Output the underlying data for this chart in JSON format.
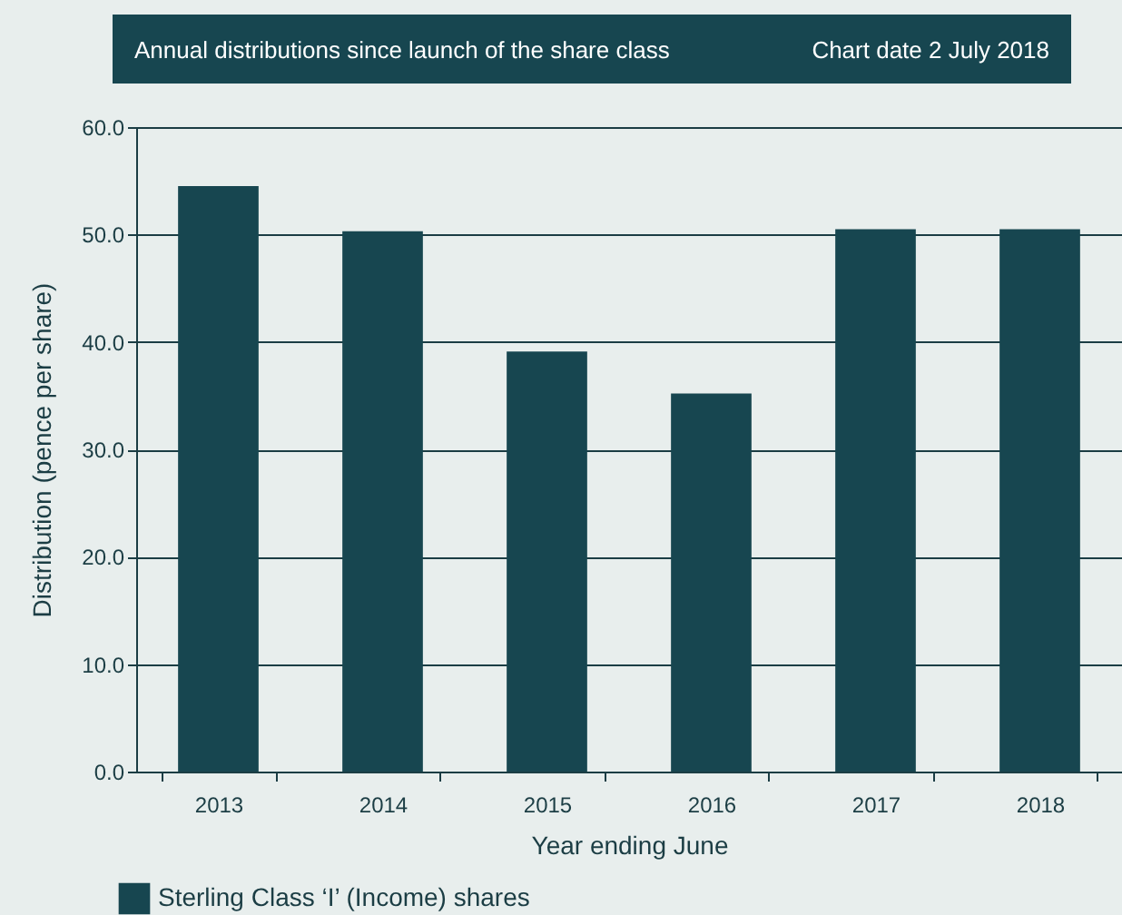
{
  "chart_data": {
    "type": "bar",
    "title": "Annual distributions since launch of the share class",
    "subtitle": "Chart date 2 July 2018",
    "xlabel": "Year ending June",
    "ylabel": "Distribution (pence per share)",
    "categories": [
      "2013",
      "2014",
      "2015",
      "2016",
      "2017",
      "2018"
    ],
    "series": [
      {
        "name": "Sterling Class ‘I’ (Income) shares",
        "color": "#174650",
        "values": [
          54.5,
          50.3,
          39.1,
          35.2,
          50.5,
          50.5
        ]
      }
    ],
    "ylim": [
      0,
      60
    ],
    "yticks": [
      {
        "value": 0,
        "label": "0.0"
      },
      {
        "value": 10,
        "label": "10.0"
      },
      {
        "value": 20,
        "label": "20.0"
      },
      {
        "value": 30,
        "label": "30.0"
      },
      {
        "value": 40,
        "label": "40.0"
      },
      {
        "value": 50,
        "label": "50.0"
      },
      {
        "value": 60,
        "label": "60.0"
      }
    ],
    "grid": "y",
    "legend": "bottom left"
  }
}
